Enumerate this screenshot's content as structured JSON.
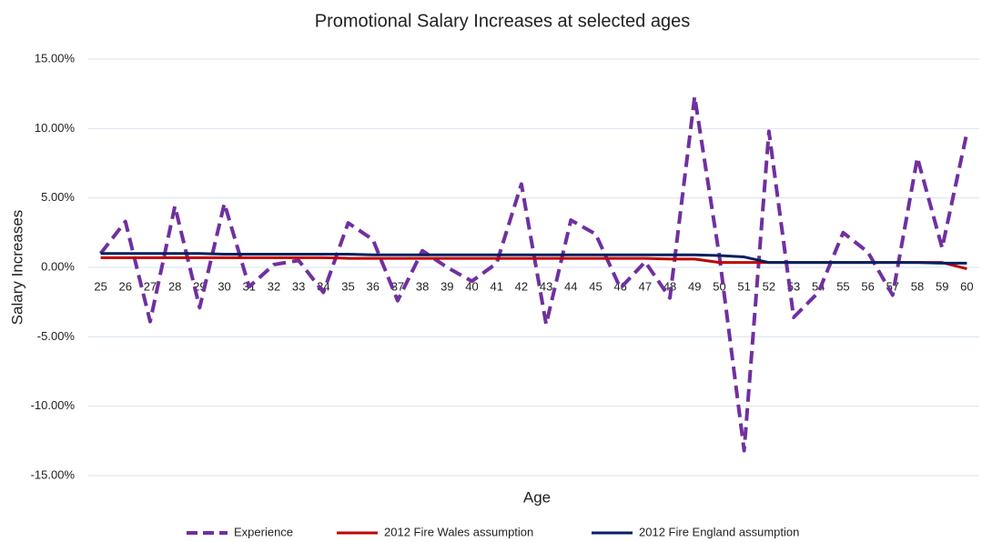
{
  "chart_data": {
    "type": "line",
    "title": "Promotional Salary Increases at selected ages",
    "x_label": "Age",
    "y_label": "Salary Increases",
    "categories": [
      "25",
      "26",
      "27",
      "28",
      "29",
      "30",
      "31",
      "32",
      "33",
      "34",
      "35",
      "36",
      "37",
      "38",
      "39",
      "40",
      "41",
      "42",
      "43",
      "44",
      "45",
      "46",
      "47",
      "48",
      "49",
      "50",
      "51",
      "52",
      "53",
      "54",
      "55",
      "56",
      "57",
      "58",
      "59",
      "60"
    ],
    "series": [
      {
        "name": "Experience",
        "color": "#7030a0",
        "dash": true,
        "values": [
          1.0,
          3.3,
          -3.9,
          4.4,
          -2.9,
          4.6,
          -1.4,
          0.2,
          0.5,
          -1.8,
          3.2,
          2.0,
          -2.4,
          1.2,
          0.0,
          -1.0,
          0.3,
          6.0,
          -4.1,
          3.4,
          2.4,
          -1.5,
          0.4,
          -2.2,
          12.3,
          0.8,
          -13.2,
          9.8,
          -3.6,
          -1.8,
          2.5,
          1.1,
          -2.0,
          7.9,
          1.4,
          9.7
        ]
      },
      {
        "name": "2012 Fire Wales assumption",
        "color": "#c00000",
        "dash": false,
        "values": [
          0.7,
          0.7,
          0.7,
          0.7,
          0.7,
          0.7,
          0.7,
          0.7,
          0.7,
          0.7,
          0.65,
          0.65,
          0.65,
          0.65,
          0.65,
          0.65,
          0.65,
          0.65,
          0.65,
          0.65,
          0.65,
          0.65,
          0.65,
          0.6,
          0.6,
          0.35,
          0.35,
          0.35,
          0.35,
          0.35,
          0.35,
          0.35,
          0.35,
          0.35,
          0.35,
          -0.1
        ]
      },
      {
        "name": "2012 Fire England assumption",
        "color": "#002060",
        "dash": false,
        "values": [
          1.0,
          1.0,
          1.0,
          1.0,
          1.0,
          0.95,
          0.95,
          0.95,
          0.95,
          0.95,
          0.95,
          0.9,
          0.9,
          0.9,
          0.9,
          0.9,
          0.9,
          0.9,
          0.9,
          0.9,
          0.9,
          0.9,
          0.9,
          0.9,
          0.9,
          0.85,
          0.75,
          0.35,
          0.35,
          0.35,
          0.35,
          0.35,
          0.35,
          0.35,
          0.3,
          0.3
        ]
      }
    ],
    "ylim": [
      -15,
      15
    ],
    "yticks": [
      {
        "value": -15,
        "label": "-15.00%"
      },
      {
        "value": -10,
        "label": "-10.00%"
      },
      {
        "value": -5,
        "label": "-5.00%"
      },
      {
        "value": 0,
        "label": "0.00%"
      },
      {
        "value": 5,
        "label": "5.00%"
      },
      {
        "value": 10,
        "label": "10.00%"
      },
      {
        "value": 15,
        "label": "15.00%"
      }
    ],
    "grid": true,
    "legend": "bottom"
  }
}
